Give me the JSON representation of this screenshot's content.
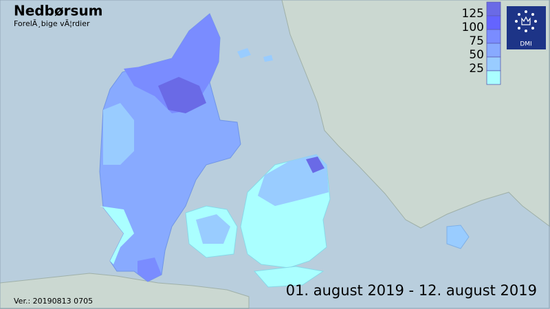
{
  "header": {
    "title": "Nedbørsum",
    "subtitle": "ForelÃ¸bige vÃ¦rdier"
  },
  "legend": {
    "labels": [
      "125",
      "100",
      "75",
      "50",
      "25"
    ],
    "colors": [
      "#6a6ae6",
      "#6464ff",
      "#7a8cff",
      "#88aaff",
      "#99ccff",
      "#aaffff"
    ]
  },
  "logo": {
    "label": "DMI"
  },
  "period": "01. august 2019 - 12. august 2019",
  "version": "Ver.: 20190813 0705"
}
